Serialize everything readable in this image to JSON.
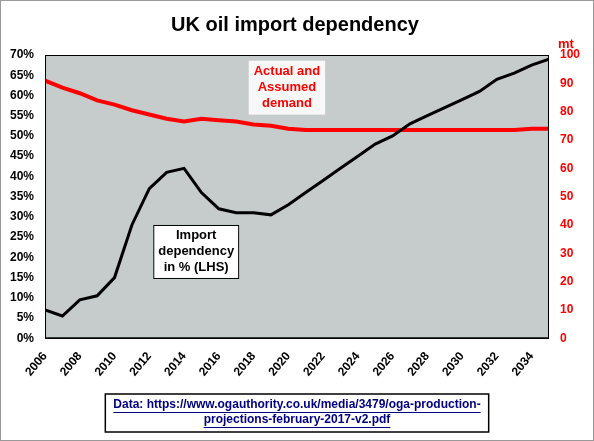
{
  "chart_data": {
    "type": "line",
    "title": "UK oil import dependency",
    "y2label": "mt",
    "source": "Data: https://www.ogauthority.co.uk/media/3479/oga-production-projections-february-2017-v2.pdf",
    "x": [
      2006,
      2007,
      2008,
      2009,
      2010,
      2011,
      2012,
      2013,
      2014,
      2015,
      2016,
      2017,
      2018,
      2019,
      2020,
      2021,
      2022,
      2023,
      2024,
      2025,
      2026,
      2027,
      2028,
      2029,
      2030,
      2031,
      2032,
      2033,
      2034,
      2035
    ],
    "xlim": [
      2006,
      2035
    ],
    "xticks": [
      2006,
      2008,
      2010,
      2012,
      2014,
      2016,
      2018,
      2020,
      2022,
      2024,
      2026,
      2028,
      2030,
      2032,
      2034
    ],
    "ylim": [
      0,
      70
    ],
    "yticks": [
      {
        "value": 0,
        "label": "0%"
      },
      {
        "value": 5,
        "label": "5%"
      },
      {
        "value": 10,
        "label": "10%"
      },
      {
        "value": 15,
        "label": "15%"
      },
      {
        "value": 20,
        "label": "20%"
      },
      {
        "value": 25,
        "label": "25%"
      },
      {
        "value": 30,
        "label": "30%"
      },
      {
        "value": 35,
        "label": "35%"
      },
      {
        "value": 40,
        "label": "40%"
      },
      {
        "value": 45,
        "label": "45%"
      },
      {
        "value": 50,
        "label": "50%"
      },
      {
        "value": 55,
        "label": "55%"
      },
      {
        "value": 60,
        "label": "60%"
      },
      {
        "value": 65,
        "label": "65%"
      },
      {
        "value": 70,
        "label": "70%"
      }
    ],
    "y2lim": [
      0,
      100
    ],
    "y2ticks": [
      0,
      10,
      20,
      30,
      40,
      50,
      60,
      70,
      80,
      90,
      100
    ],
    "grid": false,
    "series": [
      {
        "name": "Import dependency in % (LHS)",
        "color": "#000000",
        "axis": "y",
        "values": [
          7,
          5.5,
          9.5,
          10.5,
          15,
          28,
          37,
          41,
          42,
          36,
          32,
          31,
          31,
          30.5,
          33,
          36,
          39,
          42,
          45,
          48,
          50,
          53,
          55,
          57,
          59,
          61,
          64,
          65.5,
          67.5,
          69
        ]
      },
      {
        "name": "Actual and Assumed demand",
        "color": "#ff0000",
        "axis": "y2",
        "values": [
          91,
          88.5,
          86.5,
          84,
          82.5,
          80.5,
          79,
          77.5,
          76.5,
          77.5,
          77,
          76.5,
          75.5,
          75,
          74,
          73.5,
          73.5,
          73.5,
          73.5,
          73.5,
          73.5,
          73.5,
          73.5,
          73.5,
          73.5,
          73.5,
          73.5,
          73.5,
          74,
          74
        ]
      }
    ]
  }
}
